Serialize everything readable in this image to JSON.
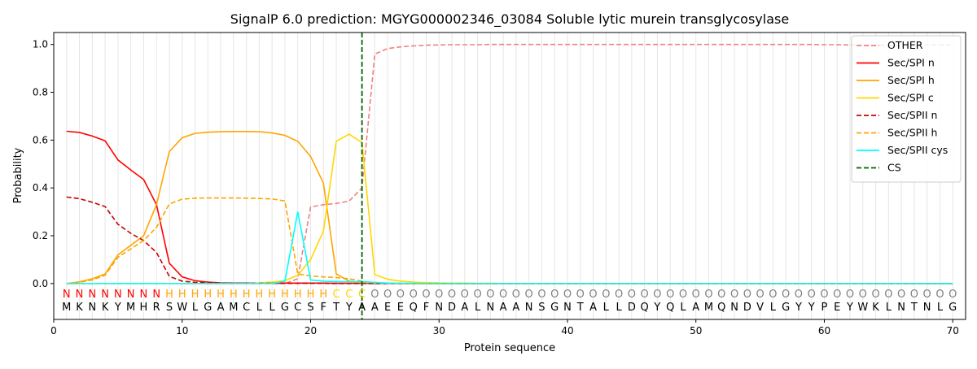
{
  "chart_data": {
    "type": "line",
    "title": "SignalP 6.0 prediction: MGYG000002346_03084 Soluble lytic murein transglycosylase",
    "xlabel": "Protein sequence",
    "ylabel": "Probability",
    "xlim": [
      0,
      71
    ],
    "ylim": [
      -0.15,
      1.05
    ],
    "x_ticks": [
      0,
      10,
      20,
      30,
      40,
      50,
      60,
      70
    ],
    "y_ticks": [
      0.0,
      0.2,
      0.4,
      0.6,
      0.8,
      1.0
    ],
    "grid": "vertical lines at each residue",
    "legend_position": "top-right",
    "cleavage_site": 24,
    "sequence": [
      "M",
      "K",
      "N",
      "K",
      "Y",
      "M",
      "H",
      "R",
      "S",
      "W",
      "L",
      "G",
      "A",
      "M",
      "C",
      "L",
      "L",
      "G",
      "C",
      "S",
      "F",
      "T",
      "Y",
      "A",
      "A",
      "E",
      "E",
      "Q",
      "F",
      "N",
      "D",
      "A",
      "L",
      "N",
      "A",
      "A",
      "N",
      "S",
      "G",
      "N",
      "T",
      "A",
      "L",
      "L",
      "D",
      "Q",
      "Y",
      "Q",
      "L",
      "A",
      "M",
      "Q",
      "N",
      "D",
      "V",
      "L",
      "G",
      "Y",
      "Y",
      "P",
      "E",
      "Y",
      "W",
      "K",
      "L",
      "N",
      "T",
      "N",
      "L",
      "G"
    ],
    "labels": [
      "N",
      "N",
      "N",
      "N",
      "N",
      "N",
      "N",
      "N",
      "H",
      "H",
      "H",
      "H",
      "H",
      "H",
      "H",
      "H",
      "H",
      "H",
      "H",
      "H",
      "H",
      "C",
      "C",
      "C",
      "O",
      "O",
      "O",
      "O",
      "O",
      "O",
      "O",
      "O",
      "O",
      "O",
      "O",
      "O",
      "O",
      "O",
      "O",
      "O",
      "O",
      "O",
      "O",
      "O",
      "O",
      "O",
      "O",
      "O",
      "O",
      "O",
      "O",
      "O",
      "O",
      "O",
      "O",
      "O",
      "O",
      "O",
      "O",
      "O",
      "O",
      "O",
      "O",
      "O",
      "O",
      "O",
      "O",
      "O",
      "O",
      "O"
    ],
    "label_colors": {
      "N": "#ff0000",
      "H": "#ffa500",
      "C": "#ffd700",
      "O": "#808080"
    },
    "series": [
      {
        "name": "OTHER",
        "color": "#f08080",
        "dash": "dashed",
        "values": [
          0.0,
          0.0,
          0.0,
          0.0,
          0.0,
          0.0,
          0.0,
          0.0,
          0.0,
          0.0,
          0.0,
          0.0,
          0.0,
          0.0,
          0.0,
          0.0,
          0.0,
          0.0,
          0.02,
          0.32,
          0.33,
          0.335,
          0.345,
          0.4,
          0.96,
          0.983,
          0.99,
          0.994,
          0.997,
          0.998,
          0.999,
          0.999,
          0.999,
          1.0,
          1.0,
          1.0,
          1.0,
          1.0,
          1.0,
          1.0,
          1.0,
          1.0,
          1.0,
          1.0,
          1.0,
          1.0,
          1.0,
          1.0,
          1.0,
          1.0,
          1.0,
          1.0,
          1.0,
          1.0,
          1.0,
          1.0,
          1.0,
          1.0,
          1.0,
          0.999,
          0.999,
          0.998,
          0.997,
          0.997,
          0.996,
          0.996,
          0.997,
          0.998,
          0.998,
          0.998
        ]
      },
      {
        "name": "Sec/SPI n",
        "color": "#ff0000",
        "dash": "solid",
        "values": [
          0.637,
          0.632,
          0.617,
          0.597,
          0.517,
          0.475,
          0.435,
          0.33,
          0.085,
          0.028,
          0.012,
          0.006,
          0.003,
          0.002,
          0.002,
          0.002,
          0.002,
          0.002,
          0.002,
          0.002,
          0.002,
          0.001,
          0.001,
          0.001,
          0.0,
          0.0,
          0.0,
          0.0,
          0.0,
          0.0,
          0.0,
          0.0,
          0.0,
          0.0,
          0.0,
          0.0,
          0.0,
          0.0,
          0.0,
          0.0,
          0.0,
          0.0,
          0.0,
          0.0,
          0.0,
          0.0,
          0.0,
          0.0,
          0.0,
          0.0,
          0.0,
          0.0,
          0.0,
          0.0,
          0.0,
          0.0,
          0.0,
          0.0,
          0.0,
          0.0,
          0.0,
          0.0,
          0.0,
          0.0,
          0.0,
          0.0,
          0.0,
          0.0,
          0.0,
          0.0
        ]
      },
      {
        "name": "Sec/SPI h",
        "color": "#ffa500",
        "dash": "solid",
        "values": [
          0.0,
          0.007,
          0.02,
          0.04,
          0.12,
          0.16,
          0.2,
          0.33,
          0.552,
          0.61,
          0.628,
          0.633,
          0.635,
          0.636,
          0.636,
          0.635,
          0.63,
          0.62,
          0.595,
          0.532,
          0.42,
          0.04,
          0.01,
          0.005,
          0.002,
          0.001,
          0.001,
          0.0,
          0.0,
          0.0,
          0.0,
          0.0,
          0.0,
          0.0,
          0.0,
          0.0,
          0.0,
          0.0,
          0.0,
          0.0,
          0.0,
          0.0,
          0.0,
          0.0,
          0.0,
          0.0,
          0.0,
          0.0,
          0.0,
          0.0,
          0.0,
          0.0,
          0.0,
          0.0,
          0.0,
          0.0,
          0.0,
          0.0,
          0.0,
          0.0,
          0.0,
          0.0,
          0.0,
          0.0,
          0.0,
          0.0,
          0.0,
          0.0,
          0.0,
          0.0
        ]
      },
      {
        "name": "Sec/SPI c",
        "color": "#ffd700",
        "dash": "solid",
        "values": [
          0.0,
          0.0,
          0.0,
          0.0,
          0.0,
          0.0,
          0.0,
          0.0,
          0.0,
          0.0,
          0.0,
          0.0,
          0.0,
          0.0,
          0.0,
          0.003,
          0.006,
          0.012,
          0.035,
          0.1,
          0.22,
          0.595,
          0.625,
          0.59,
          0.038,
          0.018,
          0.01,
          0.006,
          0.004,
          0.003,
          0.002,
          0.002,
          0.001,
          0.001,
          0.0,
          0.0,
          0.0,
          0.0,
          0.0,
          0.0,
          0.0,
          0.0,
          0.0,
          0.0,
          0.0,
          0.0,
          0.0,
          0.0,
          0.0,
          0.0,
          0.0,
          0.0,
          0.0,
          0.0,
          0.0,
          0.0,
          0.0,
          0.0,
          0.0,
          0.0,
          0.0,
          0.0,
          0.0,
          0.0,
          0.0,
          0.0,
          0.0,
          0.0,
          0.0,
          0.0
        ]
      },
      {
        "name": "Sec/SPII n",
        "color": "#cc0000",
        "dash": "dashed",
        "values": [
          0.362,
          0.355,
          0.34,
          0.322,
          0.248,
          0.21,
          0.18,
          0.13,
          0.03,
          0.01,
          0.005,
          0.003,
          0.002,
          0.001,
          0.001,
          0.001,
          0.001,
          0.001,
          0.001,
          0.001,
          0.001,
          0.0,
          0.0,
          0.0,
          0.0,
          0.0,
          0.0,
          0.0,
          0.0,
          0.0,
          0.0,
          0.0,
          0.0,
          0.0,
          0.0,
          0.0,
          0.0,
          0.0,
          0.0,
          0.0,
          0.0,
          0.0,
          0.0,
          0.0,
          0.0,
          0.0,
          0.0,
          0.0,
          0.0,
          0.0,
          0.0,
          0.0,
          0.0,
          0.0,
          0.0,
          0.0,
          0.0,
          0.0,
          0.0,
          0.0,
          0.0,
          0.0,
          0.0,
          0.0,
          0.0,
          0.0,
          0.0,
          0.0,
          0.0,
          0.0
        ]
      },
      {
        "name": "Sec/SPII h",
        "color": "#ffa500",
        "dash": "dashed",
        "values": [
          0.0,
          0.005,
          0.015,
          0.035,
          0.11,
          0.145,
          0.18,
          0.235,
          0.333,
          0.353,
          0.357,
          0.358,
          0.358,
          0.358,
          0.357,
          0.356,
          0.354,
          0.345,
          0.04,
          0.032,
          0.028,
          0.025,
          0.02,
          0.01,
          0.003,
          0.001,
          0.0,
          0.0,
          0.0,
          0.0,
          0.0,
          0.0,
          0.0,
          0.0,
          0.0,
          0.0,
          0.0,
          0.0,
          0.0,
          0.0,
          0.0,
          0.0,
          0.0,
          0.0,
          0.0,
          0.0,
          0.0,
          0.0,
          0.0,
          0.0,
          0.0,
          0.0,
          0.0,
          0.0,
          0.0,
          0.0,
          0.0,
          0.0,
          0.0,
          0.0,
          0.0,
          0.0,
          0.0,
          0.0,
          0.0,
          0.0,
          0.0,
          0.0,
          0.0,
          0.0
        ]
      },
      {
        "name": "Sec/SPII cys",
        "color": "#00ffff",
        "dash": "solid",
        "values": [
          0.0,
          0.0,
          0.0,
          0.0,
          0.0,
          0.0,
          0.0,
          0.0,
          0.0,
          0.0,
          0.0,
          0.0,
          0.0,
          0.0,
          0.0,
          0.0,
          0.0,
          0.01,
          0.3,
          0.015,
          0.01,
          0.008,
          0.008,
          0.008,
          0.005,
          0.002,
          0.001,
          0.001,
          0.0,
          0.0,
          0.0,
          0.0,
          0.0,
          0.0,
          0.0,
          0.0,
          0.0,
          0.0,
          0.0,
          0.0,
          0.0,
          0.0,
          0.0,
          0.0,
          0.0,
          0.0,
          0.0,
          0.0,
          0.0,
          0.0,
          0.0,
          0.0,
          0.0,
          0.0,
          0.0,
          0.0,
          0.0,
          0.0,
          0.0,
          0.0,
          0.0,
          0.0,
          0.0,
          0.0,
          0.0,
          0.0,
          0.0,
          0.0,
          0.0,
          0.0
        ]
      }
    ],
    "cs_series": {
      "name": "CS",
      "color": "#006400",
      "dash": "dashed"
    }
  }
}
